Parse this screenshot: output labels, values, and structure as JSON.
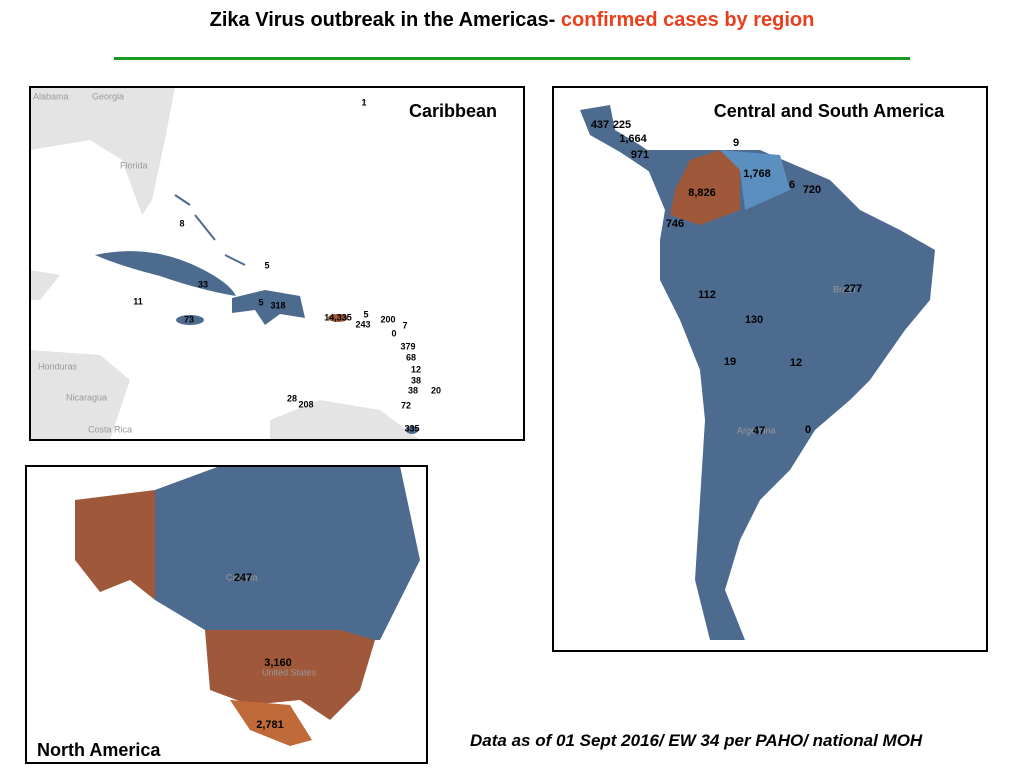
{
  "title": {
    "main": "Zika Virus outbreak in the Americas-",
    "highlight": "confirmed cases by region"
  },
  "panels": [
    {
      "title": "Caribbean",
      "place_labels": [
        "Alabama",
        "Georgia",
        "Florida",
        "Honduras",
        "Nicaragua",
        "Costa Rica"
      ],
      "case_labels": [
        "1",
        "8",
        "5",
        "33",
        "11",
        "5",
        "318",
        "73",
        "14,335",
        "5",
        "243",
        "200",
        "7",
        "0",
        "379",
        "68",
        "12",
        "38",
        "38",
        "20",
        "28",
        "208",
        "72",
        "335"
      ]
    },
    {
      "title": "Central and South America",
      "place_labels": [
        "Brazil",
        "Argentina"
      ],
      "case_labels": [
        "437",
        "225",
        "1,664",
        "9",
        "971",
        "1,768",
        "6",
        "720",
        "8,826",
        "746",
        "277",
        "112",
        "130",
        "19",
        "12",
        "47",
        "0"
      ]
    },
    {
      "title": "North America",
      "place_labels": [
        "Canada",
        "United States"
      ],
      "case_labels": [
        "247",
        "3,160",
        "2,781"
      ]
    }
  ],
  "footnote": "Data as of 01 Sept 2016/ EW 34 per PAHO/ national MOH"
}
